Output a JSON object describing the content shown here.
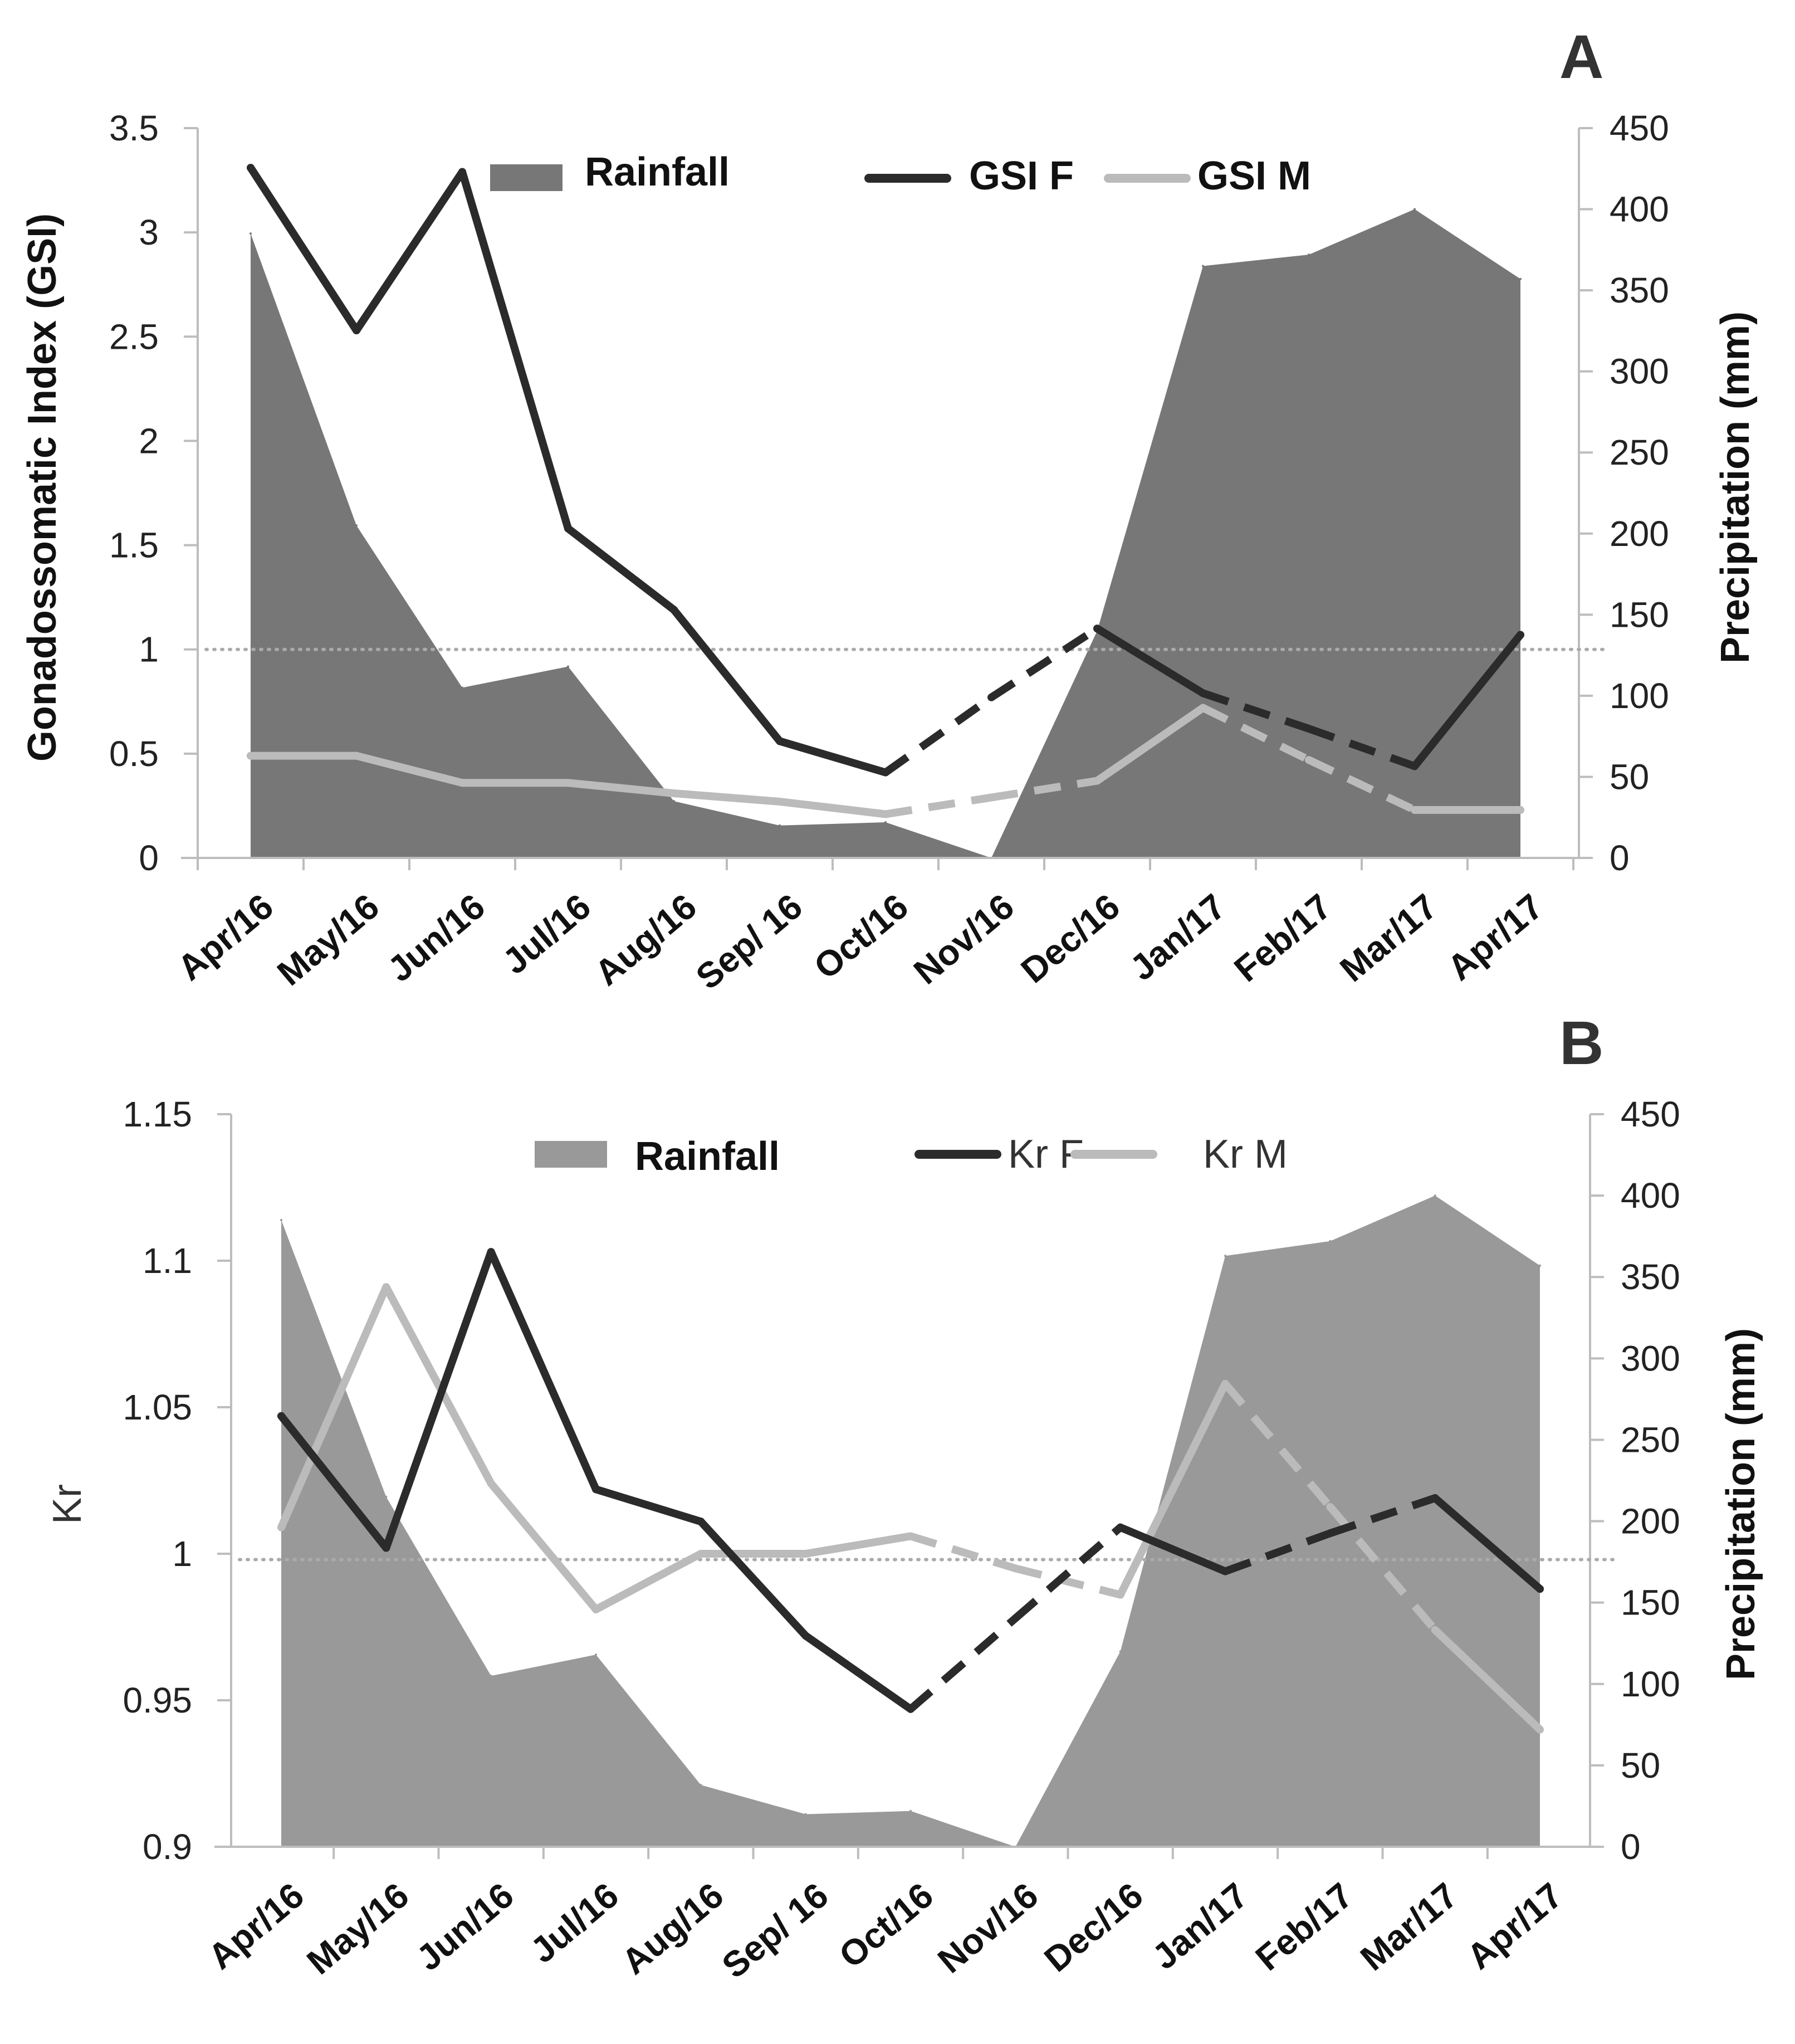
{
  "chart_data": [
    {
      "type": "line",
      "panel": "A",
      "title": "",
      "xlabel": "",
      "ylabel": "Gonadossomatic Index (GSI)",
      "ylabel_right": "Precipitation (mm)",
      "categories": [
        "Apr/16",
        "May/16",
        "Jun/16",
        "Jul/16",
        "Aug/16",
        "Sep/ 16",
        "Oct/16",
        "Nov/16",
        "Dec/16",
        "Jan/17",
        "Feb/17",
        "Mar/17",
        "Apr/17"
      ],
      "ylim": [
        0,
        3.5
      ],
      "ylim_right": [
        0,
        450
      ],
      "yticks": [
        "0",
        "0.5",
        "1",
        "1.5",
        "2",
        "2.5",
        "3",
        "3.5"
      ],
      "yticks_right": [
        "0",
        "50",
        "100",
        "150",
        "200",
        "250",
        "300",
        "350",
        "400",
        "450"
      ],
      "reference_line": 1,
      "series": [
        {
          "name": "Rainfall",
          "kind": "area",
          "axis": "right",
          "color": "#777777",
          "values": [
            385,
            205,
            105,
            118,
            35,
            20,
            22,
            0,
            140,
            365,
            372,
            400,
            357
          ]
        },
        {
          "name": "GSI F",
          "kind": "line",
          "axis": "left",
          "color": "#2b2b2b",
          "values": [
            3.31,
            2.53,
            3.29,
            1.58,
            1.19,
            0.56,
            0.41,
            0.77,
            1.1,
            0.79,
            0.62,
            0.44,
            1.07
          ],
          "dashed_segments": [
            6,
            7,
            9,
            10
          ]
        },
        {
          "name": "GSI M",
          "kind": "line",
          "axis": "left",
          "color": "#bbbbbb",
          "values": [
            0.49,
            0.49,
            0.36,
            0.36,
            0.31,
            0.27,
            0.21,
            0.29,
            0.37,
            0.72,
            0.47,
            0.23,
            0.23
          ],
          "dashed_segments": [
            6,
            7,
            9,
            10
          ]
        }
      ],
      "legend": [
        "Rainfall",
        "GSI F",
        "GSI M"
      ]
    },
    {
      "type": "line",
      "panel": "B",
      "title": "",
      "xlabel": "",
      "ylabel": "Kr",
      "ylabel_right": "Precipitation (mm)",
      "categories": [
        "Apr/16",
        "May/16",
        "Jun/16",
        "Jul/16",
        "Aug/16",
        "Sep/ 16",
        "Oct/16",
        "Nov/16",
        "Dec/16",
        "Jan/17",
        "Feb/17",
        "Mar/17",
        "Apr/17"
      ],
      "ylim": [
        0.9,
        1.15
      ],
      "ylim_right": [
        0,
        450
      ],
      "yticks": [
        "0.9",
        "0.95",
        "1",
        "1.05",
        "1.1",
        "1.15"
      ],
      "yticks_right": [
        "0",
        "50",
        "100",
        "150",
        "200",
        "250",
        "300",
        "350",
        "400",
        "450"
      ],
      "reference_line": 0.998,
      "series": [
        {
          "name": "Rainfall",
          "kind": "area",
          "axis": "right",
          "color": "#999999",
          "values": [
            385,
            215,
            105,
            118,
            38,
            20,
            22,
            0,
            120,
            363,
            372,
            400,
            357
          ]
        },
        {
          "name": "Kr F",
          "kind": "line",
          "axis": "left",
          "color": "#2b2b2b",
          "values": [
            1.047,
            1.002,
            1.103,
            1.022,
            1.011,
            0.972,
            0.947,
            0.978,
            1.009,
            0.994,
            1.007,
            1.019,
            0.988
          ],
          "dashed_segments": [
            6,
            7,
            9,
            10
          ]
        },
        {
          "name": "Kr M",
          "kind": "line",
          "axis": "left",
          "color": "#bbbbbb",
          "values": [
            1.009,
            1.091,
            1.024,
            0.981,
            1.0,
            1.0,
            1.006,
            0.995,
            0.986,
            1.058,
            1.016,
            0.974,
            0.94
          ],
          "dashed_segments": [
            6,
            7,
            9,
            10
          ]
        }
      ],
      "legend": [
        "Rainfall",
        "Kr F",
        "Kr M"
      ]
    }
  ]
}
